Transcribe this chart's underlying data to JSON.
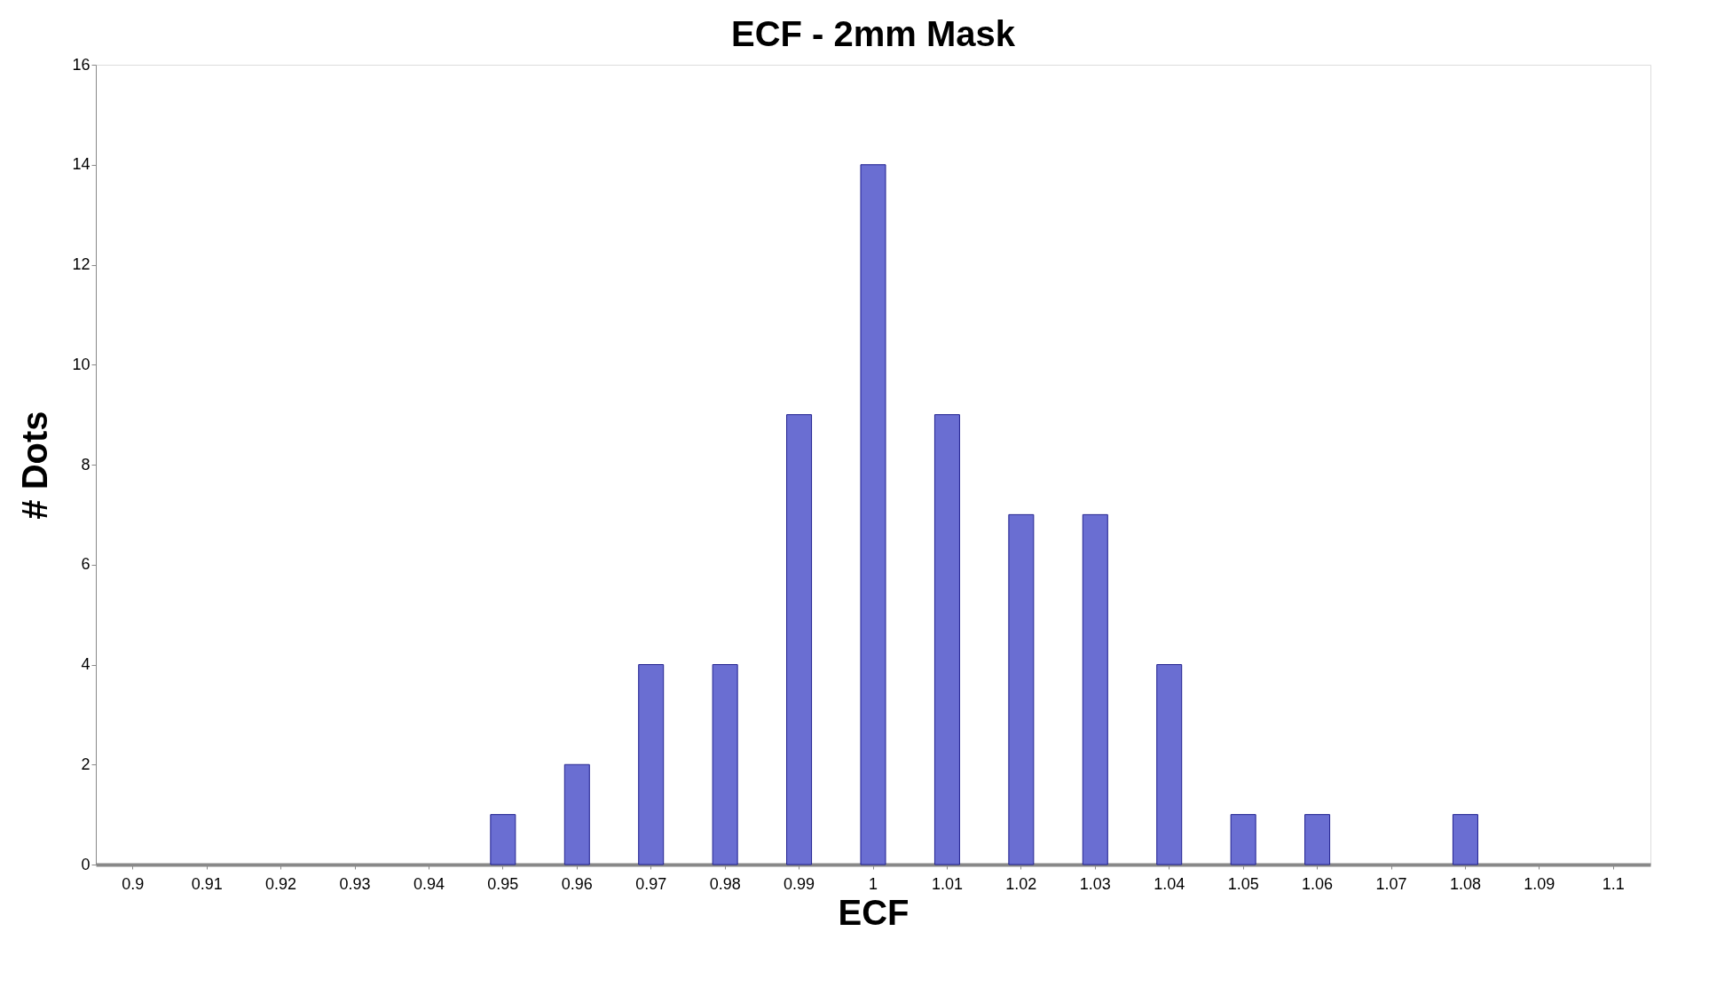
{
  "chart_data": {
    "type": "bar",
    "title": "ECF - 2mm Mask",
    "xlabel": "ECF",
    "ylabel": "# Dots",
    "categories": [
      "0.9",
      "0.91",
      "0.92",
      "0.93",
      "0.94",
      "0.95",
      "0.96",
      "0.97",
      "0.98",
      "0.99",
      "1",
      "1.01",
      "1.02",
      "1.03",
      "1.04",
      "1.05",
      "1.06",
      "1.07",
      "1.08",
      "1.09",
      "1.1"
    ],
    "values": [
      0,
      0,
      0,
      0,
      0,
      1,
      2,
      4,
      4,
      9,
      14,
      9,
      7,
      7,
      4,
      1,
      1,
      0,
      1,
      0,
      0
    ],
    "color": "#6a6ed2",
    "ylim": [
      0,
      16
    ],
    "yticks": [
      0,
      2,
      4,
      6,
      8,
      10,
      12,
      14,
      16
    ],
    "grid": false
  }
}
